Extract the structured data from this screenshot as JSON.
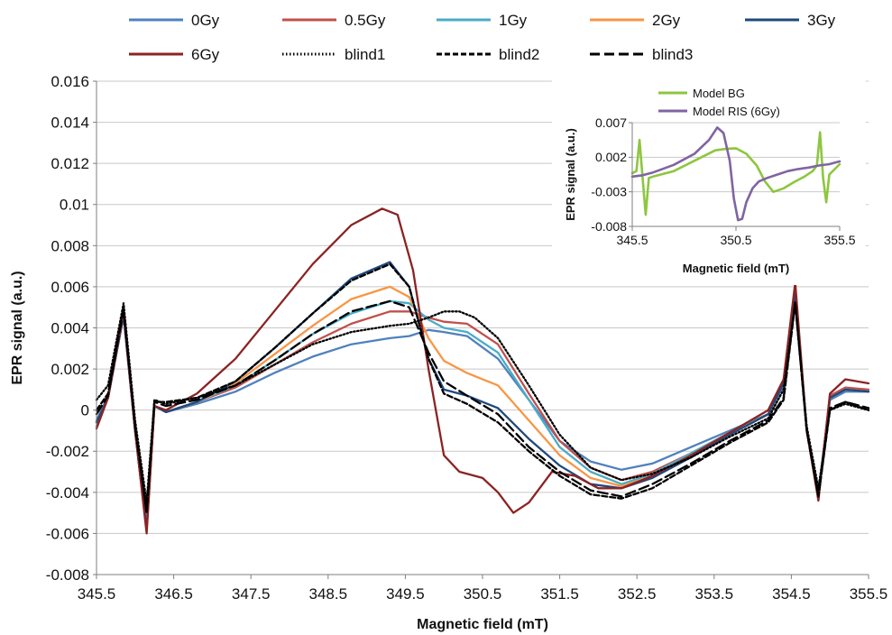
{
  "chart_data": [
    {
      "type": "line",
      "xlabel": "Magnetic field (mT)",
      "ylabel": "EPR signal  (a.u.)",
      "xlim": [
        345.5,
        355.5
      ],
      "ylim": [
        -0.008,
        0.016
      ],
      "x_ticks": [
        "345.5",
        "346.5",
        "347.5",
        "348.5",
        "349.5",
        "350.5",
        "351.5",
        "352.5",
        "353.5",
        "354.5",
        "355.5"
      ],
      "y_ticks": [
        "-0.008",
        "-0.006",
        "-0.004",
        "-0.002",
        "0",
        "0.002",
        "0.004",
        "0.006",
        "0.008",
        "0.01",
        "0.012",
        "0.014",
        "0.016"
      ],
      "grid": "horizontal",
      "legend_position": "top",
      "series": [
        {
          "name": "0Gy",
          "color": "#4f81bd",
          "dash": "solid",
          "x": [
            345.5,
            345.65,
            345.85,
            346.0,
            346.15,
            346.25,
            346.4,
            346.8,
            347.3,
            347.8,
            348.3,
            348.8,
            349.3,
            349.55,
            349.8,
            350.0,
            350.3,
            350.7,
            351.1,
            351.5,
            351.9,
            352.3,
            352.7,
            353.2,
            353.7,
            354.2,
            354.4,
            354.55,
            354.7,
            354.85,
            355.0,
            355.2,
            355.5
          ],
          "y": [
            -0.0005,
            0.0007,
            0.0046,
            -0.001,
            -0.0055,
            0.0002,
            -0.0001,
            0.0003,
            0.0009,
            0.0018,
            0.0026,
            0.0032,
            0.0035,
            0.0036,
            0.0039,
            0.0038,
            0.0036,
            0.0025,
            0.0005,
            -0.0015,
            -0.0025,
            -0.0029,
            -0.0026,
            -0.0018,
            -0.001,
            -0.0002,
            0.0012,
            0.0052,
            -0.001,
            -0.004,
            0.0005,
            0.0009,
            0.0009
          ]
        },
        {
          "name": "0.5Gy",
          "color": "#c0504d",
          "dash": "solid",
          "x": [
            345.5,
            345.65,
            345.85,
            346.0,
            346.15,
            346.25,
            346.4,
            346.8,
            347.3,
            347.8,
            348.3,
            348.8,
            349.3,
            349.55,
            349.8,
            350.0,
            350.3,
            350.7,
            351.1,
            351.5,
            351.9,
            352.3,
            352.7,
            353.2,
            353.7,
            354.2,
            354.4,
            354.55,
            354.7,
            354.85,
            355.0,
            355.2,
            355.5
          ],
          "y": [
            -0.0008,
            0.0006,
            0.0046,
            -0.001,
            -0.0058,
            0.0002,
            -0.0001,
            0.0004,
            0.0011,
            0.0022,
            0.0033,
            0.0042,
            0.0048,
            0.0048,
            0.0045,
            0.0043,
            0.0042,
            0.0032,
            0.0008,
            -0.0015,
            -0.0028,
            -0.0034,
            -0.003,
            -0.0021,
            -0.0011,
            -0.0002,
            0.0013,
            0.0057,
            -0.001,
            -0.0042,
            0.0007,
            0.0011,
            0.001
          ]
        },
        {
          "name": "1Gy",
          "color": "#4bacc6",
          "dash": "solid",
          "x": [
            345.5,
            345.65,
            345.85,
            346.0,
            346.15,
            346.25,
            346.4,
            346.8,
            347.3,
            347.8,
            348.3,
            348.8,
            349.3,
            349.55,
            349.8,
            350.0,
            350.3,
            350.7,
            351.1,
            351.5,
            351.9,
            352.3,
            352.7,
            353.2,
            353.7,
            354.2,
            354.4,
            354.55,
            354.7,
            354.85,
            355.0,
            355.2,
            355.5
          ],
          "y": [
            -0.0006,
            0.0006,
            0.0046,
            -0.001,
            -0.0057,
            0.0002,
            -0.0001,
            0.0004,
            0.0012,
            0.0024,
            0.0037,
            0.0047,
            0.0053,
            0.0052,
            0.0044,
            0.004,
            0.0038,
            0.0028,
            0.0005,
            -0.0018,
            -0.003,
            -0.0036,
            -0.0031,
            -0.0021,
            -0.0011,
            -0.0002,
            0.0013,
            0.0056,
            -0.001,
            -0.0042,
            0.0006,
            0.001,
            0.0009
          ]
        },
        {
          "name": "2Gy",
          "color": "#f79646",
          "dash": "solid",
          "x": [
            345.5,
            345.65,
            345.85,
            346.0,
            346.15,
            346.25,
            346.4,
            346.8,
            347.3,
            347.8,
            348.3,
            348.8,
            349.3,
            349.55,
            349.8,
            350.0,
            350.3,
            350.7,
            351.1,
            351.5,
            351.9,
            352.3,
            352.7,
            353.2,
            353.7,
            354.2,
            354.4,
            354.55,
            354.7,
            354.85,
            355.0,
            355.2,
            355.5
          ],
          "y": [
            -0.0006,
            0.0006,
            0.0046,
            -0.001,
            -0.0058,
            0.0002,
            -0.0001,
            0.0004,
            0.0013,
            0.0027,
            0.0041,
            0.0054,
            0.006,
            0.0055,
            0.0035,
            0.0024,
            0.0018,
            0.0012,
            -0.0005,
            -0.0022,
            -0.0033,
            -0.0037,
            -0.0032,
            -0.0022,
            -0.0012,
            -0.0002,
            0.0013,
            0.0056,
            -0.001,
            -0.0042,
            0.0006,
            0.001,
            0.0009
          ]
        },
        {
          "name": "3Gy",
          "color": "#1f497d",
          "dash": "solid",
          "x": [
            345.5,
            345.65,
            345.85,
            346.0,
            346.15,
            346.25,
            346.4,
            346.8,
            347.3,
            347.8,
            348.3,
            348.8,
            349.3,
            349.55,
            349.8,
            350.0,
            350.3,
            350.7,
            351.1,
            351.5,
            351.9,
            352.3,
            352.7,
            353.2,
            353.7,
            354.2,
            354.4,
            354.55,
            354.7,
            354.85,
            355.0,
            355.2,
            355.5
          ],
          "y": [
            -0.0006,
            0.0006,
            0.0046,
            -0.001,
            -0.0058,
            0.0002,
            -0.0001,
            0.0004,
            0.0014,
            0.003,
            0.0047,
            0.0064,
            0.0072,
            0.006,
            0.0025,
            0.001,
            0.0007,
            0.0001,
            -0.0014,
            -0.0027,
            -0.0036,
            -0.0038,
            -0.0033,
            -0.0023,
            -0.0012,
            -0.0002,
            0.0013,
            0.0056,
            -0.001,
            -0.0042,
            0.0006,
            0.001,
            0.0009
          ]
        },
        {
          "name": "6Gy",
          "color": "#8b2323",
          "dash": "solid",
          "x": [
            345.5,
            345.65,
            345.85,
            346.0,
            346.15,
            346.25,
            346.4,
            346.8,
            347.3,
            347.8,
            348.3,
            348.8,
            349.2,
            349.4,
            349.6,
            349.8,
            350.0,
            350.2,
            350.5,
            350.7,
            350.9,
            351.1,
            351.4,
            351.7,
            352.0,
            352.3,
            352.7,
            353.2,
            353.7,
            354.2,
            354.4,
            354.55,
            354.7,
            354.85,
            355.0,
            355.2,
            355.5
          ],
          "y": [
            -0.0009,
            0.0006,
            0.0048,
            -0.001,
            -0.006,
            0.0002,
            0.0,
            0.0008,
            0.0025,
            0.0048,
            0.0071,
            0.009,
            0.0098,
            0.0095,
            0.0068,
            0.002,
            -0.0022,
            -0.003,
            -0.0033,
            -0.004,
            -0.005,
            -0.0045,
            -0.003,
            -0.0032,
            -0.0038,
            -0.0038,
            -0.0032,
            -0.0022,
            -0.0011,
            0.0,
            0.0015,
            0.0062,
            -0.001,
            -0.0044,
            0.0008,
            0.0015,
            0.0013
          ]
        },
        {
          "name": "blind1",
          "color": "#000000",
          "dash": "dotted",
          "x": [
            345.5,
            345.65,
            345.85,
            346.0,
            346.15,
            346.25,
            346.4,
            346.8,
            347.3,
            347.8,
            348.3,
            348.8,
            349.3,
            349.55,
            349.8,
            350.0,
            350.2,
            350.4,
            350.7,
            351.1,
            351.5,
            351.9,
            352.3,
            352.7,
            353.2,
            353.7,
            354.2,
            354.4,
            354.55,
            354.7,
            354.85,
            355.0,
            355.2,
            355.5
          ],
          "y": [
            0.0005,
            0.0012,
            0.0052,
            -0.0005,
            -0.0045,
            0.0005,
            0.0003,
            0.0006,
            0.0012,
            0.0022,
            0.0032,
            0.0038,
            0.0041,
            0.0042,
            0.0045,
            0.0048,
            0.0048,
            0.0045,
            0.0035,
            0.0012,
            -0.0012,
            -0.0028,
            -0.0034,
            -0.0031,
            -0.0023,
            -0.0013,
            -0.0004,
            0.001,
            0.0052,
            -0.0008,
            -0.0038,
            0.0,
            0.0003,
            0.0
          ]
        },
        {
          "name": "blind2",
          "color": "#000000",
          "dash": "dashed",
          "x": [
            345.5,
            345.65,
            345.85,
            346.0,
            346.15,
            346.25,
            346.4,
            346.8,
            347.3,
            347.8,
            348.3,
            348.8,
            349.3,
            349.55,
            349.8,
            350.0,
            350.3,
            350.7,
            351.1,
            351.5,
            351.9,
            352.3,
            352.7,
            353.2,
            353.7,
            354.2,
            354.4,
            354.55,
            354.7,
            354.85,
            355.0,
            355.2,
            355.5
          ],
          "y": [
            0.0,
            0.0008,
            0.005,
            -0.0008,
            -0.005,
            0.0004,
            0.0004,
            0.0006,
            0.0014,
            0.003,
            0.0047,
            0.0063,
            0.0071,
            0.006,
            0.0025,
            0.0008,
            0.0003,
            -0.0006,
            -0.002,
            -0.0032,
            -0.0041,
            -0.0043,
            -0.0038,
            -0.0027,
            -0.0016,
            -0.0006,
            0.0005,
            0.0052,
            -0.001,
            -0.0042,
            0.0,
            0.0004,
            0.0
          ]
        },
        {
          "name": "blind3",
          "color": "#000000",
          "dash": "longdash",
          "x": [
            345.5,
            345.65,
            345.85,
            346.0,
            346.15,
            346.25,
            346.4,
            346.8,
            347.3,
            347.8,
            348.3,
            348.8,
            349.3,
            349.55,
            349.8,
            350.0,
            350.3,
            350.7,
            351.1,
            351.5,
            351.9,
            352.3,
            352.7,
            353.2,
            353.7,
            354.2,
            354.4,
            354.55,
            354.7,
            354.85,
            355.0,
            355.2,
            355.5
          ],
          "y": [
            -0.0002,
            0.0007,
            0.0049,
            -0.0008,
            -0.005,
            0.0004,
            0.0002,
            0.0005,
            0.0012,
            0.0024,
            0.0037,
            0.0048,
            0.0053,
            0.005,
            0.0028,
            0.0014,
            0.0007,
            -0.0002,
            -0.0018,
            -0.003,
            -0.0039,
            -0.0042,
            -0.0036,
            -0.0026,
            -0.0015,
            -0.0005,
            0.0006,
            0.0053,
            -0.001,
            -0.0042,
            0.0001,
            0.0004,
            0.0001
          ]
        }
      ]
    },
    {
      "type": "line",
      "inset": true,
      "xlabel": "Magnetic field (mT)",
      "ylabel": "EPR signal (a.u.)",
      "xlim": [
        345.5,
        355.5
      ],
      "ylim": [
        -0.008,
        0.007
      ],
      "x_ticks": [
        "345.5",
        "350.5",
        "355.5"
      ],
      "y_ticks": [
        "-0.008",
        "-0.003",
        "0.002",
        "0.007"
      ],
      "grid": "horizontal",
      "legend_position": "top-left",
      "series": [
        {
          "name": "Model BG",
          "color": "#8dc63f",
          "dash": "solid",
          "x": [
            345.5,
            345.7,
            345.85,
            346.0,
            346.15,
            346.3,
            346.5,
            347.5,
            348.5,
            349.5,
            350.0,
            350.5,
            351.0,
            351.5,
            351.9,
            352.3,
            352.8,
            353.3,
            353.8,
            354.2,
            354.4,
            354.55,
            354.7,
            354.85,
            355.0,
            355.5
          ],
          "y": [
            -0.0003,
            0.0,
            0.0045,
            -0.001,
            -0.0063,
            -0.001,
            -0.0008,
            0.0,
            0.0015,
            0.003,
            0.0032,
            0.0033,
            0.0025,
            0.0008,
            -0.0015,
            -0.003,
            -0.0025,
            -0.0016,
            -0.0008,
            0.0,
            0.0008,
            0.0056,
            -0.001,
            -0.0045,
            -0.0005,
            0.001
          ]
        },
        {
          "name": "Model RIS (6Gy)",
          "color": "#8064a2",
          "dash": "solid",
          "x": [
            345.5,
            346.0,
            346.5,
            347.5,
            348.5,
            349.2,
            349.6,
            349.9,
            350.2,
            350.4,
            350.6,
            350.8,
            351.0,
            351.3,
            351.6,
            352.0,
            352.5,
            353.0,
            353.5,
            354.0,
            354.5,
            355.0,
            355.5
          ],
          "y": [
            -0.0008,
            -0.0006,
            -0.0002,
            0.0009,
            0.0025,
            0.0045,
            0.0063,
            0.0055,
            0.0015,
            -0.004,
            -0.0071,
            -0.0069,
            -0.0045,
            -0.0025,
            -0.0015,
            -0.001,
            -0.0005,
            0.0,
            0.0003,
            0.0005,
            0.0008,
            0.001,
            0.0014
          ]
        }
      ]
    }
  ]
}
